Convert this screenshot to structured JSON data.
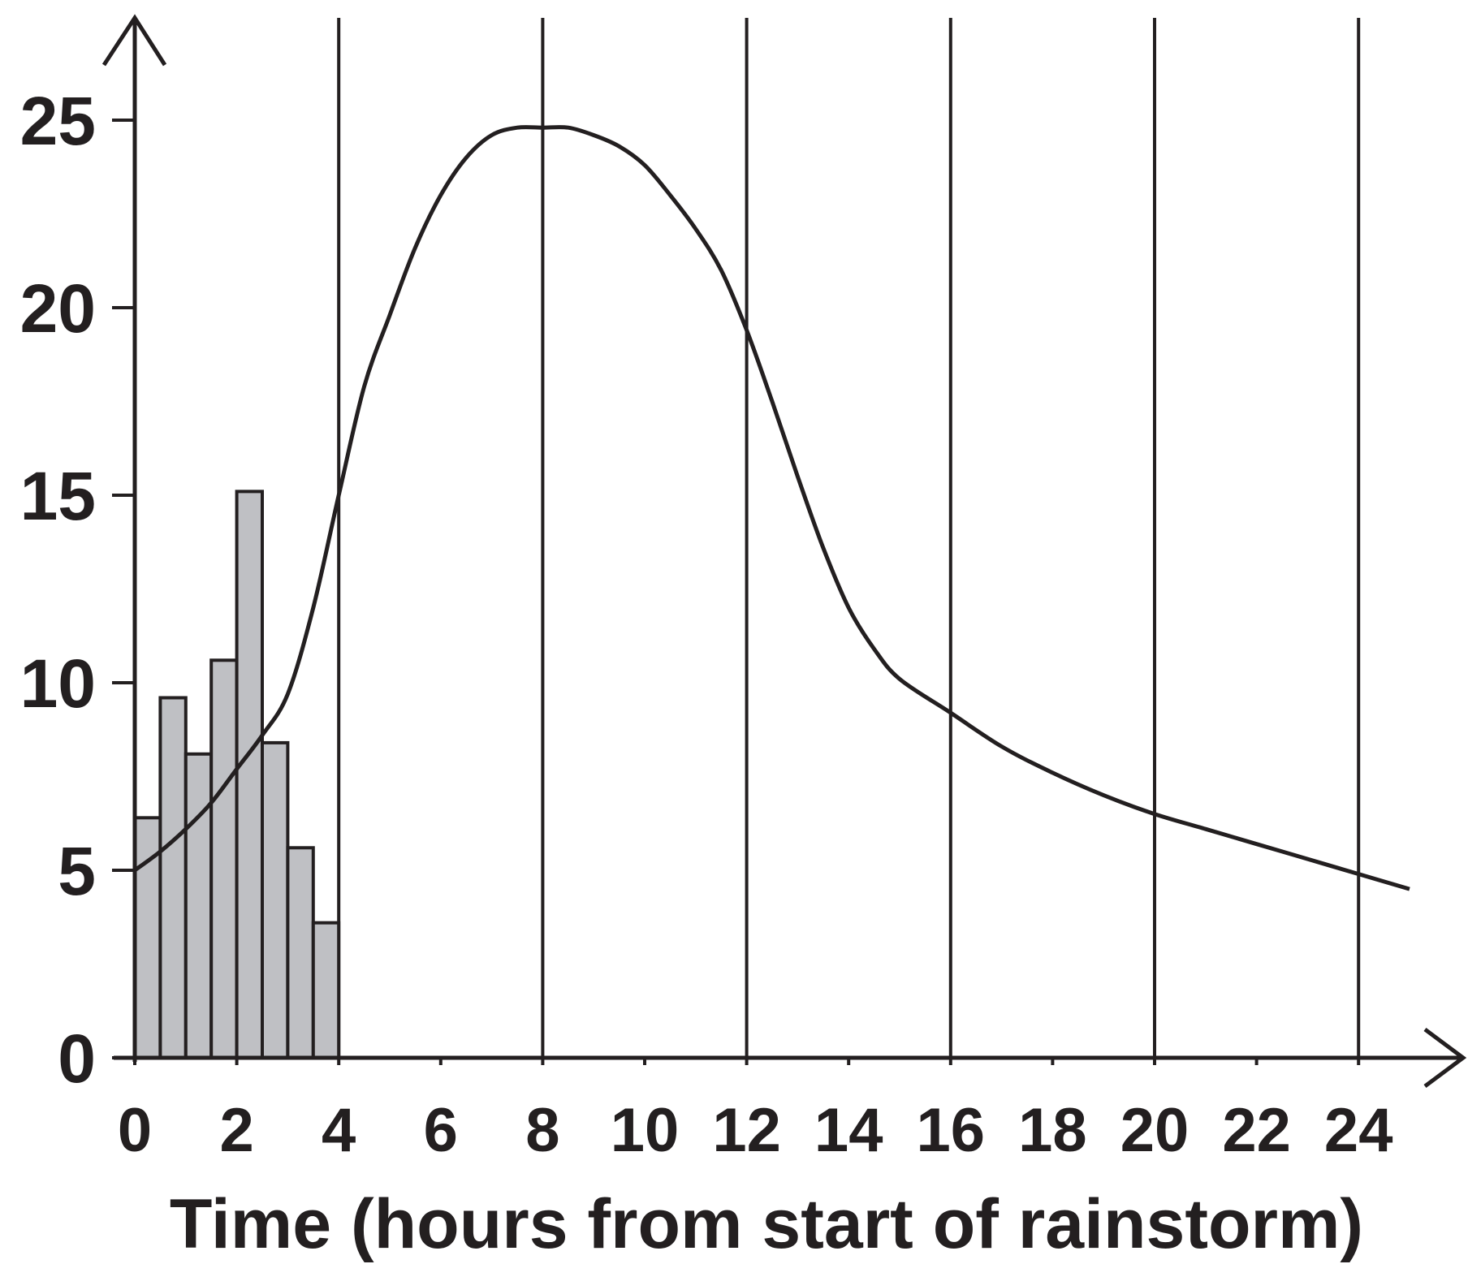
{
  "chart_data": {
    "type": "bar",
    "title": "",
    "xlabel": "Time (hours from start of rainstorm)",
    "ylabel": "",
    "xlim": [
      0,
      26
    ],
    "ylim": [
      0,
      25
    ],
    "x_ticks": [
      0,
      2,
      4,
      6,
      8,
      10,
      12,
      14,
      16,
      18,
      20,
      22,
      24
    ],
    "y_ticks": [
      0,
      5,
      10,
      15,
      20,
      25
    ],
    "vertical_gridlines_at": [
      4,
      8,
      12,
      16,
      20,
      24
    ],
    "grid": "vertical lines only",
    "legend": "none",
    "colors": {
      "bar_fill": "#bfc0c4",
      "line": "#231f20",
      "axis": "#231f20"
    },
    "series": [
      {
        "type": "bar",
        "bin_width": 0.5,
        "x": [
          0,
          0.5,
          1,
          1.5,
          2,
          2.5,
          3,
          3.5
        ],
        "values": [
          6.4,
          9.6,
          8.1,
          10.6,
          15.1,
          8.4,
          5.6,
          3.6
        ]
      },
      {
        "type": "line",
        "x": [
          0,
          0.5,
          1,
          1.5,
          2,
          2.5,
          3,
          3.5,
          4,
          4.5,
          5,
          5.5,
          6,
          6.5,
          7,
          7.5,
          8,
          8.5,
          9,
          9.5,
          10,
          10.5,
          11,
          11.5,
          12,
          12.5,
          13,
          13.5,
          14,
          14.5,
          15,
          16,
          17,
          18,
          19,
          20,
          21,
          22,
          23,
          24,
          25
        ],
        "values": [
          5.0,
          5.5,
          6.1,
          6.8,
          7.7,
          8.6,
          9.7,
          12.0,
          15.0,
          17.9,
          19.8,
          21.6,
          23.0,
          24.0,
          24.6,
          24.8,
          24.8,
          24.8,
          24.6,
          24.3,
          23.8,
          23.0,
          22.1,
          21.0,
          19.4,
          17.5,
          15.5,
          13.6,
          12.0,
          10.9,
          10.1,
          9.2,
          8.3,
          7.6,
          7.0,
          6.5,
          6.1,
          5.7,
          5.3,
          4.9,
          4.5
        ]
      }
    ]
  }
}
